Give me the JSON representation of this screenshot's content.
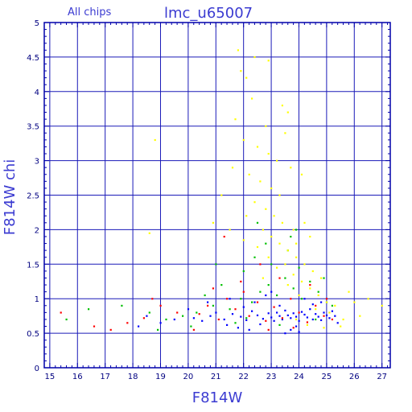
{
  "chart_data": {
    "type": "scatter",
    "subtitle": "All chips",
    "title": "lmc_u65007",
    "xlabel": "F814W",
    "ylabel": "F814W chi",
    "xlim": [
      14.8,
      27.3
    ],
    "ylim": [
      0,
      5
    ],
    "xticks": [
      "15",
      "16",
      "17",
      "18",
      "19",
      "20",
      "21",
      "22",
      "23",
      "24",
      "25",
      "26",
      "27"
    ],
    "yticks": [
      "0",
      "0.5",
      "1",
      "1.5",
      "2",
      "2.5",
      "3",
      "3.5",
      "4",
      "4.5",
      "5"
    ],
    "grid": true,
    "colors": {
      "axis": "#0000aa",
      "grid": "#1a1ab8",
      "title": "#3b3bd1",
      "series": [
        "#0000ff",
        "#00c000",
        "#ff0000",
        "#ffff00"
      ]
    },
    "series": [
      {
        "color": "#0000ff",
        "values": [
          [
            20.2,
            0.72
          ],
          [
            20.5,
            0.68
          ],
          [
            20.8,
            0.75
          ],
          [
            21.0,
            0.8
          ],
          [
            21.3,
            0.7
          ],
          [
            21.6,
            0.78
          ],
          [
            21.9,
            0.74
          ],
          [
            22.1,
            0.69
          ],
          [
            22.3,
            0.82
          ],
          [
            22.5,
            0.76
          ],
          [
            22.7,
            0.71
          ],
          [
            22.9,
            0.79
          ],
          [
            23.0,
            0.73
          ],
          [
            23.1,
            0.68
          ],
          [
            23.2,
            0.8
          ],
          [
            23.3,
            0.75
          ],
          [
            23.4,
            0.7
          ],
          [
            23.5,
            0.83
          ],
          [
            23.6,
            0.76
          ],
          [
            23.7,
            0.72
          ],
          [
            23.8,
            0.79
          ],
          [
            23.9,
            0.74
          ],
          [
            24.0,
            0.68
          ],
          [
            24.1,
            0.81
          ],
          [
            24.2,
            0.77
          ],
          [
            24.3,
            0.73
          ],
          [
            24.4,
            0.85
          ],
          [
            24.5,
            0.7
          ],
          [
            24.6,
            0.78
          ],
          [
            24.7,
            0.74
          ],
          [
            24.8,
            0.69
          ],
          [
            24.9,
            0.8
          ],
          [
            25.0,
            0.76
          ],
          [
            25.1,
            0.72
          ],
          [
            25.2,
            0.82
          ],
          [
            25.3,
            0.75
          ],
          [
            21.4,
            0.62
          ],
          [
            22.0,
            0.88
          ],
          [
            22.6,
            0.63
          ],
          [
            23.3,
            0.9
          ],
          [
            23.9,
            0.6
          ],
          [
            24.5,
            0.92
          ],
          [
            19.5,
            0.7
          ],
          [
            19.0,
            0.65
          ],
          [
            18.5,
            0.75
          ],
          [
            18.2,
            0.6
          ],
          [
            20.0,
            0.85
          ],
          [
            21.8,
            0.58
          ],
          [
            22.4,
            0.95
          ],
          [
            23.7,
            0.55
          ],
          [
            24.8,
            0.95
          ],
          [
            25.4,
            0.65
          ],
          [
            21.5,
            1.0
          ],
          [
            22.8,
            1.05
          ],
          [
            24.2,
            1.0
          ],
          [
            23.0,
            1.1
          ],
          [
            20.7,
            0.95
          ],
          [
            22.2,
            0.55
          ],
          [
            23.5,
            0.5
          ],
          [
            24.0,
            0.52
          ]
        ]
      },
      {
        "color": "#00c000",
        "values": [
          [
            20.3,
            0.8
          ],
          [
            20.9,
            0.9
          ],
          [
            21.5,
            0.85
          ],
          [
            21.9,
            1.0
          ],
          [
            22.3,
            0.95
          ],
          [
            22.6,
            1.1
          ],
          [
            22.9,
            1.2
          ],
          [
            23.2,
            1.05
          ],
          [
            23.5,
            1.3
          ],
          [
            23.8,
            1.15
          ],
          [
            24.1,
            1.0
          ],
          [
            24.4,
            1.25
          ],
          [
            24.7,
            1.1
          ],
          [
            25.0,
            0.95
          ],
          [
            22.0,
            1.4
          ],
          [
            22.4,
            1.6
          ],
          [
            23.0,
            1.5
          ],
          [
            23.6,
            1.7
          ],
          [
            24.0,
            1.45
          ],
          [
            22.8,
            1.8
          ],
          [
            19.8,
            0.75
          ],
          [
            19.2,
            0.7
          ],
          [
            18.6,
            0.8
          ],
          [
            17.6,
            0.9
          ],
          [
            16.4,
            0.85
          ],
          [
            15.6,
            0.7
          ],
          [
            21.2,
            1.2
          ],
          [
            20.6,
            1.05
          ],
          [
            23.9,
            2.0
          ],
          [
            22.5,
            2.1
          ],
          [
            24.6,
            0.7
          ],
          [
            25.2,
            0.9
          ],
          [
            21.7,
            0.65
          ],
          [
            23.3,
            0.62
          ],
          [
            24.9,
            1.3
          ],
          [
            22.1,
            0.72
          ],
          [
            20.1,
            0.6
          ],
          [
            18.9,
            0.55
          ],
          [
            23.7,
            1.9
          ],
          [
            21.0,
            1.5
          ]
        ]
      },
      {
        "color": "#ff0000",
        "values": [
          [
            20.4,
            0.78
          ],
          [
            20.7,
            0.9
          ],
          [
            21.1,
            0.7
          ],
          [
            21.4,
            1.0
          ],
          [
            21.7,
            0.85
          ],
          [
            22.0,
            1.1
          ],
          [
            22.2,
            0.75
          ],
          [
            22.5,
            0.95
          ],
          [
            22.8,
            0.68
          ],
          [
            23.1,
            0.88
          ],
          [
            23.4,
            0.72
          ],
          [
            23.7,
            1.0
          ],
          [
            24.0,
            0.8
          ],
          [
            24.3,
            0.66
          ],
          [
            24.6,
            0.9
          ],
          [
            24.9,
            0.75
          ],
          [
            25.2,
            0.7
          ],
          [
            19.6,
            0.8
          ],
          [
            19.0,
            0.9
          ],
          [
            18.4,
            0.72
          ],
          [
            17.8,
            0.65
          ],
          [
            17.2,
            0.55
          ],
          [
            16.6,
            0.6
          ],
          [
            15.4,
            0.8
          ],
          [
            21.9,
            1.25
          ],
          [
            23.3,
            1.3
          ],
          [
            22.6,
            1.5
          ],
          [
            24.4,
            1.2
          ],
          [
            20.9,
            1.15
          ],
          [
            21.3,
            1.9
          ],
          [
            22.9,
            0.55
          ],
          [
            20.2,
            0.55
          ],
          [
            18.7,
            1.0
          ],
          [
            23.8,
            0.58
          ],
          [
            25.0,
            1.0
          ]
        ]
      },
      {
        "color": "#ffff00",
        "values": [
          [
            21.8,
            4.6
          ],
          [
            22.1,
            4.2
          ],
          [
            21.9,
            4.3
          ],
          [
            22.4,
            4.5
          ],
          [
            22.9,
            4.45
          ],
          [
            23.4,
            3.8
          ],
          [
            23.6,
            3.7
          ],
          [
            22.3,
            3.9
          ],
          [
            22.8,
            3.5
          ],
          [
            21.7,
            3.6
          ],
          [
            22.0,
            3.3
          ],
          [
            22.5,
            3.2
          ],
          [
            22.9,
            3.1
          ],
          [
            23.2,
            3.0
          ],
          [
            23.5,
            3.4
          ],
          [
            21.6,
            2.9
          ],
          [
            22.2,
            2.8
          ],
          [
            22.6,
            2.7
          ],
          [
            23.0,
            2.6
          ],
          [
            23.3,
            2.5
          ],
          [
            23.7,
            2.9
          ],
          [
            24.1,
            2.8
          ],
          [
            22.4,
            2.4
          ],
          [
            22.8,
            2.3
          ],
          [
            23.1,
            2.2
          ],
          [
            23.4,
            2.1
          ],
          [
            23.8,
            2.0
          ],
          [
            24.2,
            2.1
          ],
          [
            22.1,
            2.2
          ],
          [
            22.7,
            2.0
          ],
          [
            23.0,
            1.9
          ],
          [
            23.3,
            1.8
          ],
          [
            23.6,
            1.7
          ],
          [
            23.9,
            1.6
          ],
          [
            24.2,
            1.5
          ],
          [
            24.5,
            1.4
          ],
          [
            24.8,
            1.3
          ],
          [
            23.5,
            1.5
          ],
          [
            23.8,
            1.35
          ],
          [
            24.1,
            1.25
          ],
          [
            24.4,
            1.15
          ],
          [
            24.7,
            1.05
          ],
          [
            25.0,
            0.95
          ],
          [
            25.3,
            0.9
          ],
          [
            24.6,
            0.85
          ],
          [
            25.1,
            0.8
          ],
          [
            24.0,
            1.05
          ],
          [
            23.6,
            1.2
          ],
          [
            22.9,
            1.6
          ],
          [
            22.5,
            1.75
          ],
          [
            21.5,
            2.0
          ],
          [
            21.2,
            2.5
          ],
          [
            20.9,
            2.1
          ],
          [
            18.8,
            3.3
          ],
          [
            18.6,
            1.95
          ],
          [
            26.0,
            0.95
          ],
          [
            26.5,
            1.0
          ],
          [
            27.0,
            0.9
          ],
          [
            25.8,
            1.1
          ],
          [
            26.2,
            0.75
          ],
          [
            25.5,
            0.6
          ],
          [
            24.9,
            0.58
          ],
          [
            24.3,
            0.62
          ],
          [
            23.9,
            0.7
          ],
          [
            25.6,
            0.7
          ],
          [
            22.7,
            1.3
          ],
          [
            23.2,
            1.45
          ],
          [
            23.9,
            1.8
          ],
          [
            24.4,
            1.9
          ],
          [
            22.0,
            1.85
          ]
        ]
      }
    ]
  }
}
